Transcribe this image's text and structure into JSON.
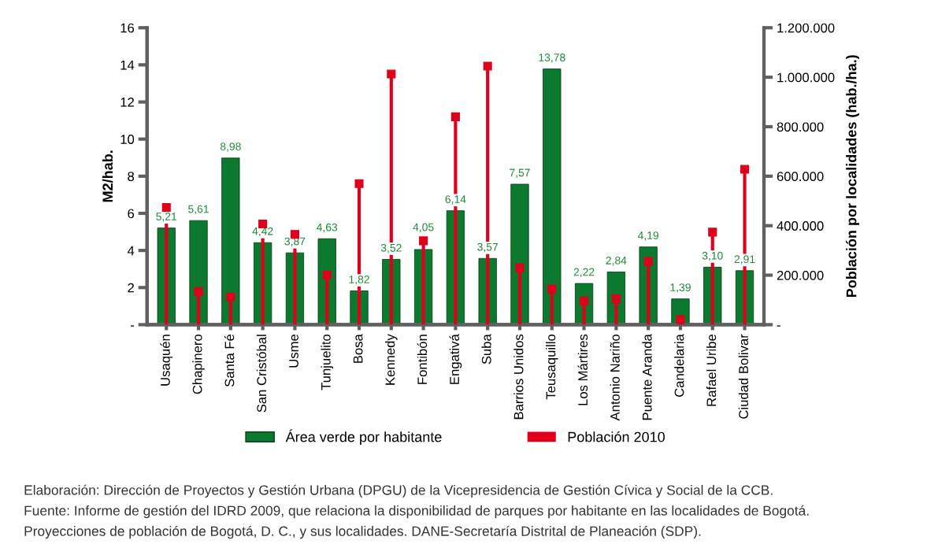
{
  "chart_data": {
    "type": "bar",
    "categories": [
      "Usaquén",
      "Chapinero",
      "Santa Fé",
      "San Cristóbal",
      "Usme",
      "Tunjuelito",
      "Bosa",
      "Kennedy",
      "Fontibón",
      "Engativá",
      "Suba",
      "Barrios Unidos",
      "Teusaquillo",
      "Los Mártires",
      "Antonio Nariño",
      "Puente Aranda",
      "Candelaria",
      "Rafael Uribe",
      "Ciudad Bolivar"
    ],
    "series": [
      {
        "name": "Área verde por habitante",
        "color": "#0b7a2e",
        "values": [
          5.21,
          5.61,
          8.98,
          4.42,
          3.87,
          4.63,
          1.82,
          3.52,
          4.05,
          6.14,
          3.57,
          7.57,
          13.78,
          2.22,
          2.84,
          4.19,
          1.39,
          3.1,
          2.91
        ],
        "value_labels": [
          "5,21",
          "5,61",
          "8,98",
          "4,42",
          "3,87",
          "4,63",
          "1,82",
          "3,52",
          "4,05",
          "6,14",
          "3,57",
          "7,57",
          "13,78",
          "2,22",
          "2,84",
          "4,19",
          "1,39",
          "3,10",
          "2,91"
        ]
      },
      {
        "name": "Población 2010",
        "type": "lollipop",
        "axis": "y2",
        "color": "#e0001b",
        "marker": "square",
        "values": [
          474000,
          134000,
          112000,
          407000,
          365000,
          201000,
          570000,
          1013000,
          339000,
          840000,
          1045000,
          230000,
          144000,
          96000,
          105000,
          256000,
          21000,
          374000,
          628000
        ]
      }
    ],
    "ylabel": "M2/hab.",
    "y2label": "Población por localidades (hab./ha.)",
    "ylim": [
      0,
      16
    ],
    "yticks": [
      {
        "value": 0,
        "label": "-"
      },
      2,
      4,
      6,
      8,
      10,
      12,
      14,
      16
    ],
    "y2lim": [
      0,
      1200000
    ],
    "y2ticks": [
      {
        "value": 0,
        "label": "-"
      },
      {
        "value": 200000,
        "label": "200.000"
      },
      {
        "value": 400000,
        "label": "400.000"
      },
      {
        "value": 600000,
        "label": "600.000"
      },
      {
        "value": 800000,
        "label": "800.000"
      },
      {
        "value": 1000000,
        "label": "1.000.000"
      },
      {
        "value": 1200000,
        "label": "1.200.000"
      }
    ],
    "legend": "bottom",
    "annotations": [
      "Elaboración: Dirección de Proyectos y Gestión Urbana (DPGU) de la Vicepresidencia de Gestión Cívica y Social de la CCB.",
      "Fuente: Informe de gestión del IDRD 2009, que relaciona la disponibilidad de parques por habitante en las localidades de Bogotá.",
      "Proyecciones de población de Bogotá, D. C., y sus localidades. DANE-Secretaría Distrital de Planeación (SDP)."
    ]
  }
}
